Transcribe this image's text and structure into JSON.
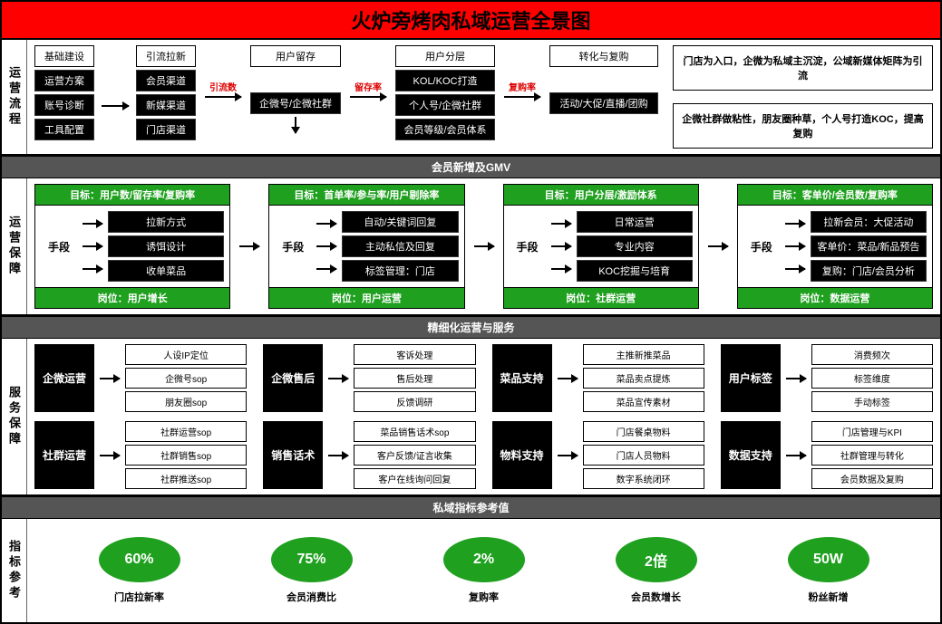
{
  "title": "火炉旁烤肉私域运营全景图",
  "section1": {
    "label": "运营流程",
    "col1_header": "基础建设",
    "col1_items": [
      "运营方案",
      "账号诊断",
      "工具配置"
    ],
    "col2_header": "引流拉新",
    "col2_items": [
      "会员渠道",
      "新媒渠道",
      "门店渠道"
    ],
    "arrow1_label": "引流数",
    "col3_header": "用户留存",
    "col3_item": "企微号/企微社群",
    "arrow2_label": "留存率",
    "col4_header": "用户分层",
    "col4_items": [
      "KOL/KOC打造",
      "个人号/企微社群",
      "会员等级/会员体系"
    ],
    "arrow3_label": "复购率",
    "col5_header": "转化与复购",
    "col5_item": "活动/大促/直播/团购",
    "note1": "门店为入口，企微为私域主沉淀，公域新媒体矩阵为引流",
    "note2": "企微社群做粘性，朋友圈种草，个人号打造KOC，提高复购"
  },
  "band1": "会员新增及GMV",
  "section2": {
    "label": "运营保障",
    "cards": [
      {
        "goal": "目标：用户数/留存率/复购率",
        "items": [
          "拉新方式",
          "诱饵设计",
          "收单菜品"
        ],
        "role": "岗位：用户增长"
      },
      {
        "goal": "目标：首单率/参与率/用户剔除率",
        "items": [
          "自动/关键词回复",
          "主动私信及回复",
          "标签管理：门店"
        ],
        "role": "岗位：用户运营"
      },
      {
        "goal": "目标：用户分层/激励体系",
        "items": [
          "日常运营",
          "专业内容",
          "KOC挖掘与培育"
        ],
        "role": "岗位：社群运营"
      },
      {
        "goal": "目标：客单价/会员数/复购率",
        "items": [
          "拉新会员：大促活动",
          "客单价：菜品/新品预告",
          "复购：门店/会员分析"
        ],
        "role": "岗位：数据运营"
      }
    ],
    "means": "手段"
  },
  "band2": "精细化运营与服务",
  "section3": {
    "label": "服务保障",
    "groups": [
      [
        {
          "title": "企微运营",
          "items": [
            "人设IP定位",
            "企微号sop",
            "朋友圈sop"
          ]
        },
        {
          "title": "社群运营",
          "items": [
            "社群运营sop",
            "社群销售sop",
            "社群推送sop"
          ]
        }
      ],
      [
        {
          "title": "企微售后",
          "items": [
            "客诉处理",
            "售后处理",
            "反馈调研"
          ]
        },
        {
          "title": "销售话术",
          "items": [
            "菜品销售话术sop",
            "客户反馈/证言收集",
            "客户在线询问回复"
          ]
        }
      ],
      [
        {
          "title": "菜品支持",
          "items": [
            "主推新推菜品",
            "菜品卖点提炼",
            "菜品宣传素材"
          ]
        },
        {
          "title": "物料支持",
          "items": [
            "门店餐桌物料",
            "门店人员物料",
            "数字系统闭环"
          ]
        }
      ],
      [
        {
          "title": "用户标签",
          "items": [
            "消费频次",
            "标签维度",
            "手动标签"
          ]
        },
        {
          "title": "数据支持",
          "items": [
            "门店管理与KPI",
            "社群管理与转化",
            "会员数据及复购"
          ]
        }
      ]
    ]
  },
  "band3": "私域指标参考值",
  "section4": {
    "label": "指标参考",
    "metrics": [
      {
        "value": "60%",
        "label": "门店拉新率"
      },
      {
        "value": "75%",
        "label": "会员消费比"
      },
      {
        "value": "2%",
        "label": "复购率"
      },
      {
        "value": "2倍",
        "label": "会员数增长"
      },
      {
        "value": "50W",
        "label": "粉丝新增"
      }
    ]
  },
  "colors": {
    "red": "#ff0000",
    "green": "#1fa01f",
    "black": "#000000"
  }
}
